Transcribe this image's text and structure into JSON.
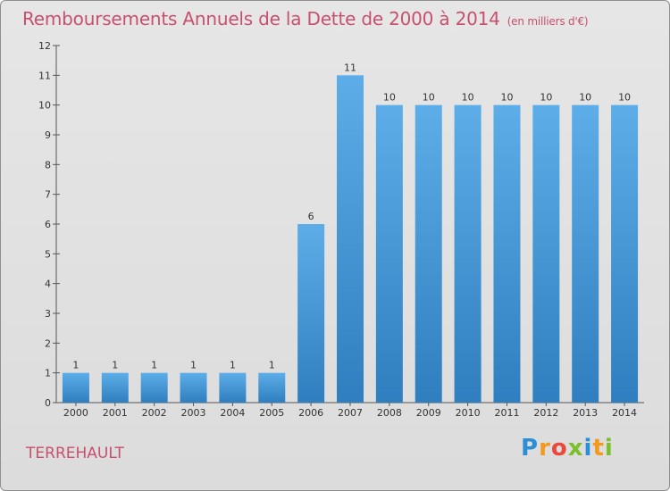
{
  "title": "Remboursements Annuels de la Dette de 2000 à 2014",
  "unit": "(en milliers d'€)",
  "place": "TERREHAULT",
  "logo": {
    "letters": [
      "P",
      "r",
      "o",
      "x",
      "i",
      "t",
      "i"
    ],
    "colors": [
      "#2a8fd6",
      "#f39a1e",
      "#e9483b",
      "#7bbf2a",
      "#2a8fd6",
      "#f39a1e",
      "#7bbf2a"
    ]
  },
  "colors": {
    "bar_top": "#5dade8",
    "bar_bottom": "#2f7fc0",
    "text": "#c8506e"
  },
  "chart_data": {
    "type": "bar",
    "categories": [
      "2000",
      "2001",
      "2002",
      "2003",
      "2004",
      "2005",
      "2006",
      "2007",
      "2008",
      "2009",
      "2010",
      "2011",
      "2012",
      "2013",
      "2014"
    ],
    "values": [
      1,
      1,
      1,
      1,
      1,
      1,
      6,
      11,
      10,
      10,
      10,
      10,
      10,
      10,
      10
    ],
    "ylim": [
      0,
      12
    ],
    "yticks": [
      0,
      1,
      2,
      3,
      4,
      5,
      6,
      7,
      8,
      9,
      10,
      11,
      12
    ],
    "grid": false
  }
}
